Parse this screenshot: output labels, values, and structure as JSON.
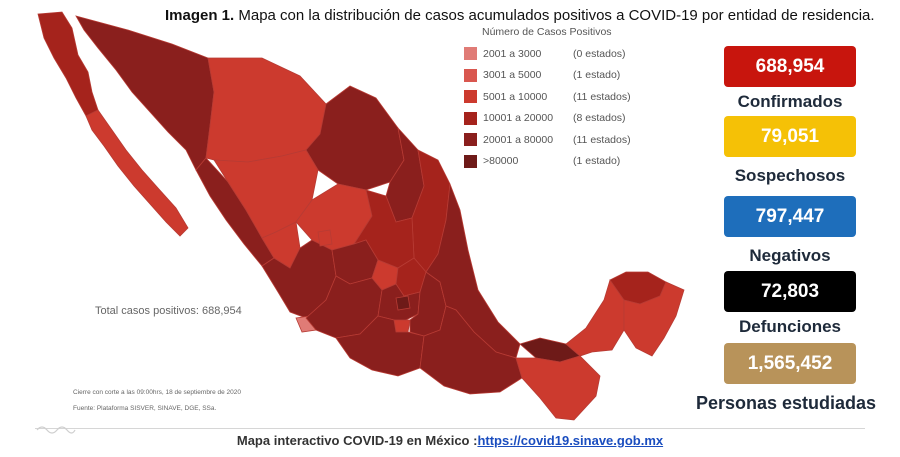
{
  "title": {
    "bold": "Imagen 1.",
    "text": " Mapa con la distribución de casos acumulados positivos a COVID-19 por entidad de residencia."
  },
  "legend": {
    "title": "Número de Casos Positivos",
    "items": [
      {
        "range": "2001 a    3000",
        "count": "(0 estados)",
        "color": "#e07b76"
      },
      {
        "range": "3001 a    5000",
        "count": "(1 estado)",
        "color": "#d9574f"
      },
      {
        "range": "5001 a  10000",
        "count": "(11 estados)",
        "color": "#cc3a2e"
      },
      {
        "range": "10001 a  20000",
        "count": "(8 estados)",
        "color": "#a5231c"
      },
      {
        "range": "20001 a  80000",
        "count": "(11 estados)",
        "color": "#8a1f1d"
      },
      {
        "range": ">80000",
        "count": "(1 estado)",
        "color": "#6e1a18"
      }
    ]
  },
  "map": {
    "total_label": "Total casos positivos: 688,954",
    "cut_note": "Cierre con corte a las 09:00hrs, 18 de septiembre de 2020",
    "source_note": "Fuente: Plataforma SISVER, SINAVE, DGE, SSa."
  },
  "stats": [
    {
      "value": "688,954",
      "label": "Confirmados",
      "color": "#c8150d"
    },
    {
      "value": "79,051",
      "label": "Sospechosos",
      "color": "#f5c106"
    },
    {
      "value": "797,447",
      "label": "Negativos",
      "color": "#1e6ebb"
    },
    {
      "value": "72,803",
      "label": "Defunciones",
      "color": "#000000"
    },
    {
      "value": "1,565,452",
      "label": "Personas estudiadas",
      "color": "#b8935a"
    }
  ],
  "footer": {
    "text": "Mapa interactivo COVID-19 en México :",
    "link": "https://covid19.sinave.gob.mx"
  }
}
